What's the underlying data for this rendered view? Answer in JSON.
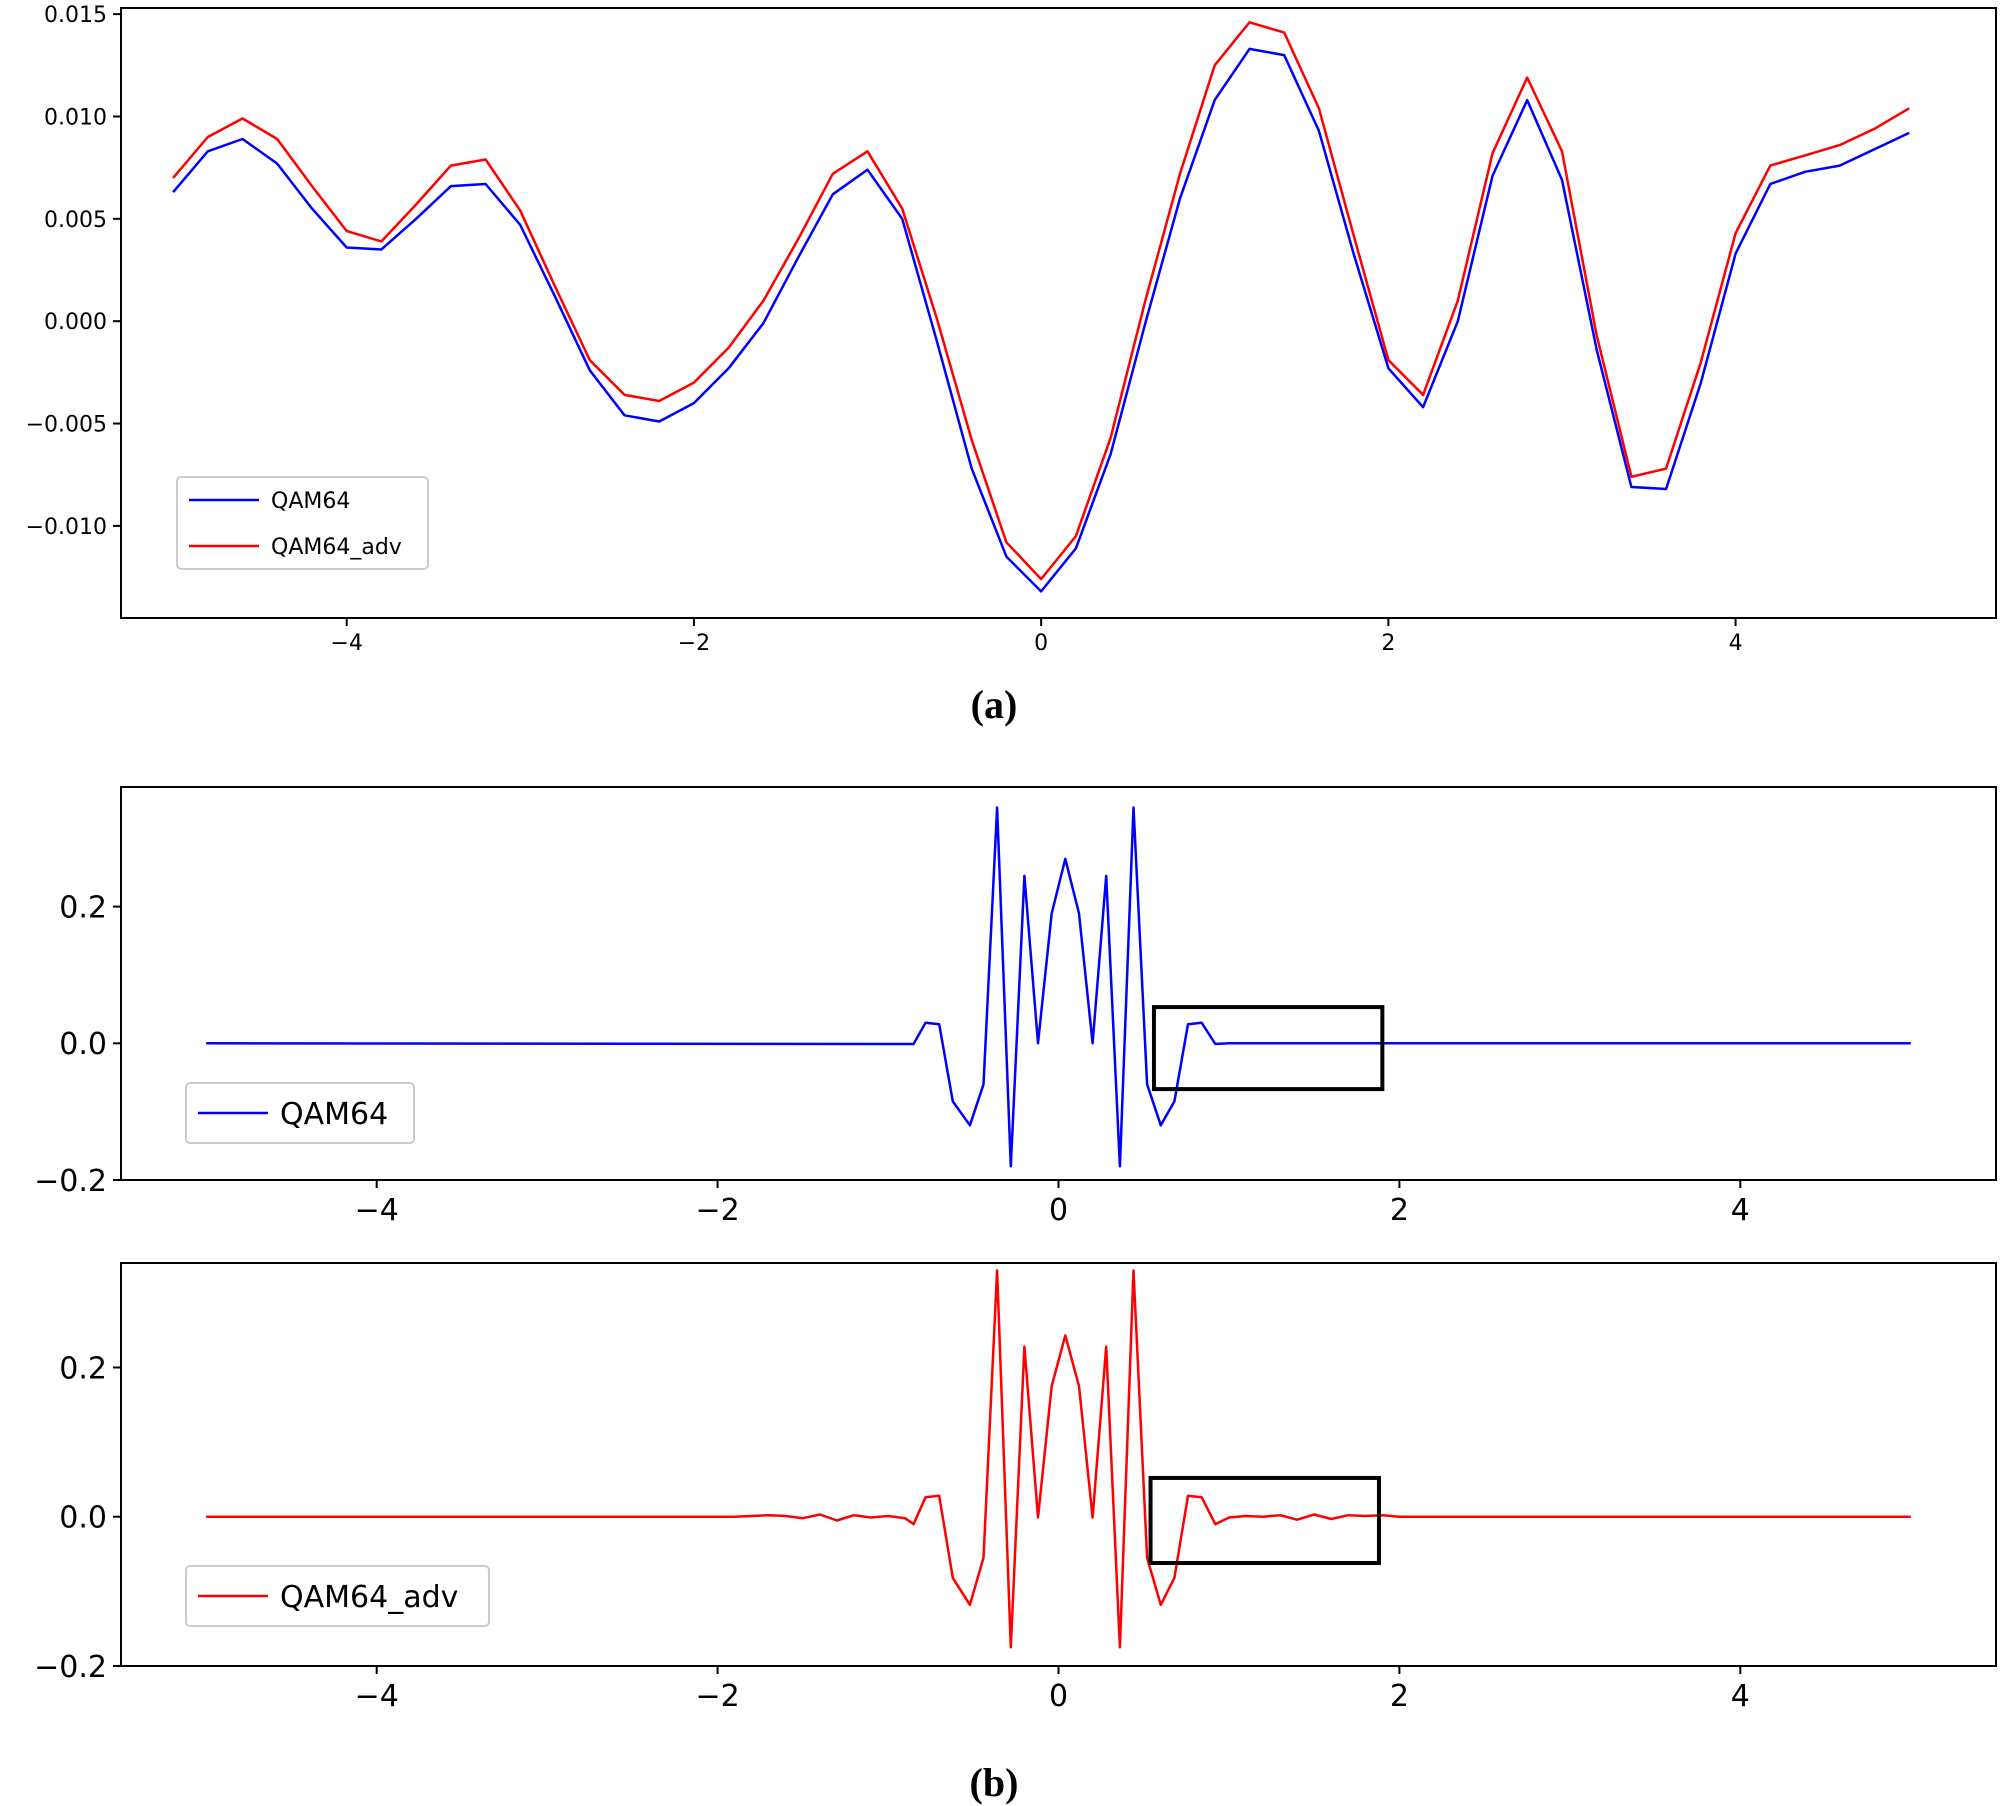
{
  "figure": {
    "caption_a": "(a)",
    "caption_b": "(b)"
  },
  "chart_data": [
    {
      "type": "line",
      "panel": "a",
      "title": "",
      "xlabel": "",
      "ylabel": "",
      "xlim": [
        -5.3,
        5.5
      ],
      "ylim": [
        -0.0145,
        0.0153
      ],
      "xticks": [
        -4,
        -2,
        0,
        2,
        4
      ],
      "xtick_labels": [
        "−4",
        "−2",
        "0",
        "2",
        "4"
      ],
      "yticks": [
        0.015,
        0.01,
        0.005,
        0.0,
        -0.005,
        -0.01
      ],
      "ytick_labels": [
        "0.015",
        "0.010",
        "0.005",
        "0.000",
        "−0.005",
        "−0.010"
      ],
      "grid": false,
      "legend_position": "lower-left",
      "series": [
        {
          "name": "QAM64",
          "color": "#0000ff",
          "x": [
            -5.0,
            -4.8,
            -4.6,
            -4.4,
            -4.2,
            -4.0,
            -3.8,
            -3.6,
            -3.4,
            -3.2,
            -3.0,
            -2.8,
            -2.6,
            -2.4,
            -2.2,
            -2.0,
            -1.8,
            -1.6,
            -1.4,
            -1.2,
            -1.0,
            -0.8,
            -0.6,
            -0.4,
            -0.2,
            0.0,
            0.2,
            0.4,
            0.6,
            0.8,
            1.0,
            1.2,
            1.4,
            1.6,
            1.8,
            2.0,
            2.2,
            2.4,
            2.6,
            2.8,
            3.0,
            3.2,
            3.4,
            3.6,
            3.8,
            4.0,
            4.2,
            4.4,
            4.6,
            4.8,
            5.0
          ],
          "values": [
            0.0063,
            0.0083,
            0.0089,
            0.0077,
            0.0055,
            0.0036,
            0.0035,
            0.005,
            0.0066,
            0.0067,
            0.0047,
            0.0012,
            -0.0024,
            -0.0046,
            -0.0049,
            -0.004,
            -0.0023,
            -0.0001,
            0.0031,
            0.0062,
            0.0074,
            0.005,
            -0.001,
            -0.0072,
            -0.0115,
            -0.0132,
            -0.0111,
            -0.0065,
            -0.0001,
            0.006,
            0.0108,
            0.0133,
            0.013,
            0.0093,
            0.0033,
            -0.0023,
            -0.0042,
            0.0,
            0.0071,
            0.0108,
            0.0069,
            -0.0014,
            -0.0081,
            -0.0082,
            -0.003,
            0.0033,
            0.0067,
            0.0073,
            0.0076,
            0.0084,
            0.0092
          ]
        },
        {
          "name": "QAM64_adv",
          "color": "#ff0000",
          "x": [
            -5.0,
            -4.8,
            -4.6,
            -4.4,
            -4.2,
            -4.0,
            -3.8,
            -3.6,
            -3.4,
            -3.2,
            -3.0,
            -2.8,
            -2.6,
            -2.4,
            -2.2,
            -2.0,
            -1.8,
            -1.6,
            -1.4,
            -1.2,
            -1.0,
            -0.8,
            -0.6,
            -0.4,
            -0.2,
            0.0,
            0.2,
            0.4,
            0.6,
            0.8,
            1.0,
            1.2,
            1.4,
            1.6,
            1.8,
            2.0,
            2.2,
            2.4,
            2.6,
            2.8,
            3.0,
            3.2,
            3.4,
            3.6,
            3.8,
            4.0,
            4.2,
            4.4,
            4.6,
            4.8,
            5.0
          ],
          "values": [
            0.007,
            0.009,
            0.0099,
            0.0089,
            0.0066,
            0.0044,
            0.0039,
            0.0057,
            0.0076,
            0.0079,
            0.0054,
            0.0017,
            -0.0019,
            -0.0036,
            -0.0039,
            -0.003,
            -0.0013,
            0.001,
            0.004,
            0.0072,
            0.0083,
            0.0055,
            0.0001,
            -0.0058,
            -0.0108,
            -0.0126,
            -0.0105,
            -0.0057,
            0.001,
            0.0072,
            0.0125,
            0.0146,
            0.0141,
            0.0104,
            0.0042,
            -0.0019,
            -0.0036,
            0.001,
            0.0082,
            0.0119,
            0.0083,
            -0.0007,
            -0.0076,
            -0.0072,
            -0.002,
            0.0043,
            0.0076,
            0.0081,
            0.0086,
            0.0094,
            0.0104
          ]
        }
      ]
    },
    {
      "type": "line",
      "panel": "b-top",
      "title": "",
      "xlabel": "",
      "ylabel": "",
      "xlim": [
        -5.5,
        5.5
      ],
      "ylim": [
        -0.2,
        0.375
      ],
      "xticks": [
        -4,
        -2,
        0,
        2,
        4
      ],
      "xtick_labels": [
        "−4",
        "−2",
        "0",
        "2",
        "4"
      ],
      "yticks": [
        0.2,
        0.0,
        -0.2
      ],
      "ytick_labels": [
        "0.2",
        "0.0",
        "−0.2"
      ],
      "grid": false,
      "legend_position": "lower-left",
      "highlight_box": {
        "x": [
          0.56,
          1.9
        ],
        "y": [
          -0.067,
          0.053
        ]
      },
      "series": [
        {
          "name": "QAM64",
          "color": "#0000ff",
          "x": [
            -5.0,
            -0.85,
            -0.78,
            -0.7,
            -0.62,
            -0.52,
            -0.44,
            -0.36,
            -0.28,
            -0.2,
            -0.12,
            -0.04,
            0.04,
            0.12,
            0.2,
            0.28,
            0.36,
            0.44,
            0.52,
            0.6,
            0.68,
            0.76,
            0.84,
            0.92,
            1.0,
            5.0
          ],
          "values": [
            0.0,
            -0.001,
            0.03,
            0.028,
            -0.085,
            -0.12,
            -0.06,
            0.345,
            -0.18,
            0.245,
            0.0,
            0.19,
            0.27,
            0.19,
            0.0,
            0.245,
            -0.18,
            0.345,
            -0.06,
            -0.12,
            -0.085,
            0.028,
            0.03,
            -0.001,
            0.0,
            0.0
          ]
        }
      ]
    },
    {
      "type": "line",
      "panel": "b-bottom",
      "title": "",
      "xlabel": "",
      "ylabel": "",
      "xlim": [
        -5.5,
        5.5
      ],
      "ylim": [
        -0.2,
        0.34
      ],
      "xticks": [
        -4,
        -2,
        0,
        2,
        4
      ],
      "xtick_labels": [
        "−4",
        "−2",
        "0",
        "2",
        "4"
      ],
      "yticks": [
        0.2,
        0.0,
        -0.2
      ],
      "ytick_labels": [
        "0.2",
        "0.0",
        "−0.2"
      ],
      "grid": false,
      "legend_position": "lower-left",
      "highlight_box": {
        "x": [
          0.54,
          1.88
        ],
        "y": [
          -0.062,
          0.052
        ]
      },
      "series": [
        {
          "name": "QAM64_adv",
          "color": "#ff0000",
          "x": [
            -5.0,
            -1.9,
            -1.8,
            -1.7,
            -1.6,
            -1.5,
            -1.4,
            -1.3,
            -1.2,
            -1.1,
            -1.0,
            -0.9,
            -0.85,
            -0.78,
            -0.7,
            -0.62,
            -0.52,
            -0.44,
            -0.36,
            -0.28,
            -0.2,
            -0.12,
            -0.04,
            0.04,
            0.12,
            0.2,
            0.28,
            0.36,
            0.44,
            0.52,
            0.6,
            0.68,
            0.76,
            0.84,
            0.92,
            1.0,
            1.1,
            1.2,
            1.3,
            1.4,
            1.5,
            1.6,
            1.7,
            1.8,
            1.9,
            2.0,
            5.0
          ],
          "values": [
            0.0,
            0.0,
            0.001,
            0.002,
            0.001,
            -0.002,
            0.003,
            -0.005,
            0.002,
            -0.001,
            0.001,
            -0.002,
            -0.01,
            0.026,
            0.028,
            -0.082,
            -0.118,
            -0.055,
            0.33,
            -0.175,
            0.228,
            -0.001,
            0.175,
            0.243,
            0.175,
            -0.001,
            0.228,
            -0.175,
            0.33,
            -0.055,
            -0.118,
            -0.082,
            0.028,
            0.026,
            -0.01,
            -0.001,
            0.001,
            0.0,
            0.002,
            -0.004,
            0.003,
            -0.003,
            0.002,
            0.001,
            0.002,
            0.0,
            0.0
          ]
        }
      ]
    }
  ]
}
